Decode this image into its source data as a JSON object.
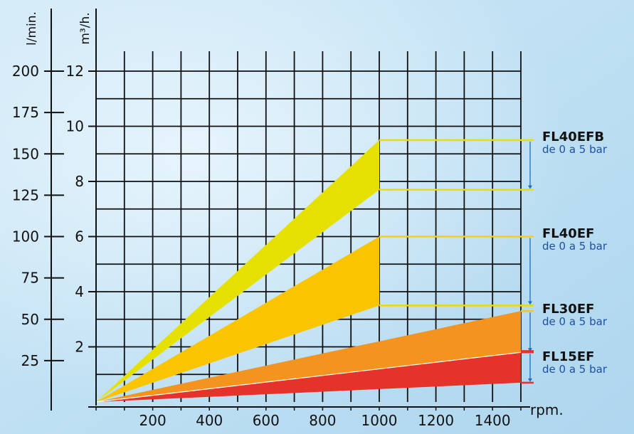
{
  "chart_data": {
    "type": "area",
    "x_ticks": [
      200,
      400,
      600,
      800,
      1000,
      1200,
      1400
    ],
    "x_unit": "rpm.",
    "x_range": [
      0,
      1500
    ],
    "y_left_unit": "l/min.",
    "y_left_ticks": [
      25,
      50,
      75,
      100,
      125,
      150,
      175,
      200
    ],
    "y_right_unit": "m³/h.",
    "y_right_ticks": [
      2,
      4,
      6,
      8,
      10,
      12
    ],
    "y_range_m3h": [
      0,
      12
    ],
    "grid": true,
    "colors": {
      "FL40EFB": "#e6e000",
      "FL40EF": "#f9c500",
      "FL30EF": "#f2941f",
      "FL15EF": "#e5322a",
      "marker_line": "#1f6fc0"
    },
    "series": [
      {
        "name": "FL40EFB",
        "subtitle": "de 0 a 5 bar",
        "x_max": 1000,
        "upper_m3h": 9.5,
        "lower_m3h": 7.7
      },
      {
        "name": "FL40EF",
        "subtitle": "de 0 a 5 bar",
        "x_max": 1000,
        "upper_m3h": 6.0,
        "lower_m3h": 3.5
      },
      {
        "name": "FL30EF",
        "subtitle": "de 0 a 5 bar",
        "x_max": 1500,
        "upper_m3h": 3.3,
        "lower_m3h": 1.8
      },
      {
        "name": "FL15EF",
        "subtitle": "de 0 a 5 bar",
        "x_max": 1500,
        "upper_m3h": 1.8,
        "lower_m3h": 0.7
      }
    ]
  }
}
